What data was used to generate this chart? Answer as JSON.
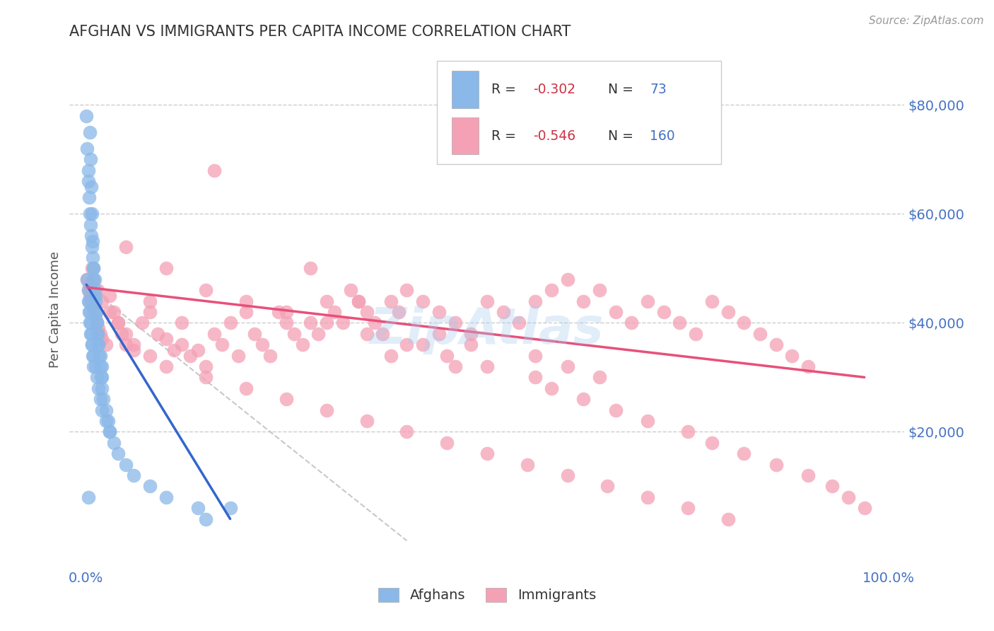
{
  "title": "AFGHAN VS IMMIGRANTS PER CAPITA INCOME CORRELATION CHART",
  "source_text": "Source: ZipAtlas.com",
  "ylabel": "Per Capita Income",
  "legend_label_afghans": "Afghans",
  "legend_label_immigrants": "Immigrants",
  "color_afghans": "#8ab8e8",
  "color_afghans_line": "#3366cc",
  "color_immigrants": "#f4a0b5",
  "color_immigrants_line": "#e8507a",
  "color_dashed": "#bbbbbb",
  "color_axis_labels": "#4472c4",
  "color_legend_r": "#cc3344",
  "watermark": "ZipAtlas",
  "watermark_color": "#aaccee",
  "ylim": [
    -5000,
    90000
  ],
  "ytick_vals": [
    20000,
    40000,
    60000,
    80000
  ],
  "ytick_labels": [
    "$20,000",
    "$40,000",
    "$60,000",
    "$80,000"
  ],
  "xlim": [
    -0.02,
    1.02
  ],
  "xtick_vals": [
    0.0,
    1.0
  ],
  "xtick_labels": [
    "0.0%",
    "100.0%"
  ],
  "afghans_x": [
    0.001,
    0.002,
    0.003,
    0.003,
    0.004,
    0.005,
    0.006,
    0.007,
    0.008,
    0.009,
    0.01,
    0.01,
    0.011,
    0.012,
    0.013,
    0.014,
    0.015,
    0.016,
    0.018,
    0.02,
    0.005,
    0.006,
    0.007,
    0.008,
    0.009,
    0.01,
    0.011,
    0.012,
    0.013,
    0.014,
    0.015,
    0.016,
    0.017,
    0.018,
    0.019,
    0.02,
    0.022,
    0.025,
    0.028,
    0.03,
    0.003,
    0.004,
    0.005,
    0.006,
    0.008,
    0.01,
    0.012,
    0.014,
    0.016,
    0.018,
    0.02,
    0.025,
    0.03,
    0.035,
    0.04,
    0.05,
    0.06,
    0.08,
    0.1,
    0.14,
    0.002,
    0.003,
    0.004,
    0.005,
    0.006,
    0.007,
    0.008,
    0.009,
    0.01,
    0.02,
    0.003,
    0.15,
    0.18
  ],
  "afghans_y": [
    78000,
    72000,
    68000,
    66000,
    63000,
    60000,
    58000,
    56000,
    54000,
    52000,
    50000,
    48000,
    46000,
    44000,
    42000,
    40000,
    38000,
    36000,
    34000,
    32000,
    75000,
    70000,
    65000,
    60000,
    55000,
    50000,
    48000,
    45000,
    42000,
    40000,
    38000,
    36000,
    34000,
    32000,
    30000,
    28000,
    26000,
    24000,
    22000,
    20000,
    44000,
    42000,
    40000,
    38000,
    36000,
    34000,
    32000,
    30000,
    28000,
    26000,
    24000,
    22000,
    20000,
    18000,
    16000,
    14000,
    12000,
    10000,
    8000,
    6000,
    48000,
    46000,
    44000,
    42000,
    40000,
    38000,
    36000,
    34000,
    32000,
    30000,
    8000,
    4000,
    6000
  ],
  "immigrants_x": [
    0.002,
    0.003,
    0.004,
    0.005,
    0.006,
    0.007,
    0.008,
    0.009,
    0.01,
    0.012,
    0.014,
    0.016,
    0.018,
    0.02,
    0.025,
    0.03,
    0.035,
    0.04,
    0.045,
    0.05,
    0.06,
    0.07,
    0.08,
    0.09,
    0.1,
    0.11,
    0.12,
    0.13,
    0.14,
    0.15,
    0.16,
    0.17,
    0.18,
    0.19,
    0.2,
    0.21,
    0.22,
    0.23,
    0.24,
    0.25,
    0.26,
    0.27,
    0.28,
    0.29,
    0.3,
    0.31,
    0.32,
    0.33,
    0.34,
    0.35,
    0.36,
    0.37,
    0.38,
    0.39,
    0.4,
    0.42,
    0.44,
    0.46,
    0.48,
    0.5,
    0.52,
    0.54,
    0.56,
    0.58,
    0.6,
    0.62,
    0.64,
    0.66,
    0.68,
    0.7,
    0.72,
    0.74,
    0.76,
    0.78,
    0.8,
    0.82,
    0.84,
    0.86,
    0.88,
    0.9,
    0.008,
    0.01,
    0.015,
    0.02,
    0.03,
    0.04,
    0.05,
    0.06,
    0.08,
    0.1,
    0.15,
    0.2,
    0.25,
    0.3,
    0.35,
    0.4,
    0.45,
    0.5,
    0.55,
    0.6,
    0.65,
    0.7,
    0.75,
    0.8,
    0.05,
    0.1,
    0.15,
    0.2,
    0.25,
    0.3,
    0.35,
    0.4,
    0.45,
    0.5,
    0.56,
    0.58,
    0.62,
    0.66,
    0.7,
    0.75,
    0.78,
    0.82,
    0.86,
    0.9,
    0.93,
    0.95,
    0.97,
    0.42,
    0.38,
    0.46,
    0.16,
    0.28,
    0.34,
    0.08,
    0.12,
    0.44,
    0.48,
    0.56,
    0.6,
    0.64
  ],
  "immigrants_y": [
    48000,
    46000,
    47000,
    45000,
    46000,
    44000,
    45000,
    43000,
    42000,
    41000,
    40000,
    39000,
    38000,
    37000,
    36000,
    45000,
    42000,
    40000,
    38000,
    36000,
    35000,
    40000,
    42000,
    38000,
    37000,
    35000,
    36000,
    34000,
    35000,
    32000,
    38000,
    36000,
    40000,
    34000,
    42000,
    38000,
    36000,
    34000,
    42000,
    40000,
    38000,
    36000,
    40000,
    38000,
    44000,
    42000,
    40000,
    46000,
    44000,
    42000,
    40000,
    38000,
    44000,
    42000,
    46000,
    44000,
    42000,
    40000,
    38000,
    44000,
    42000,
    40000,
    44000,
    46000,
    48000,
    44000,
    46000,
    42000,
    40000,
    44000,
    42000,
    40000,
    38000,
    44000,
    42000,
    40000,
    38000,
    36000,
    34000,
    32000,
    50000,
    48000,
    46000,
    44000,
    42000,
    40000,
    38000,
    36000,
    34000,
    32000,
    30000,
    28000,
    26000,
    24000,
    22000,
    20000,
    18000,
    16000,
    14000,
    12000,
    10000,
    8000,
    6000,
    4000,
    54000,
    50000,
    46000,
    44000,
    42000,
    40000,
    38000,
    36000,
    34000,
    32000,
    30000,
    28000,
    26000,
    24000,
    22000,
    20000,
    18000,
    16000,
    14000,
    12000,
    10000,
    8000,
    6000,
    36000,
    34000,
    32000,
    68000,
    50000,
    44000,
    44000,
    40000,
    38000,
    36000,
    34000,
    32000,
    30000
  ],
  "afghans_line_x": [
    0.001,
    0.18
  ],
  "afghans_line_y": [
    47000,
    4000
  ],
  "immigrants_line_x": [
    0.002,
    0.97
  ],
  "immigrants_line_y": [
    46500,
    30000
  ]
}
